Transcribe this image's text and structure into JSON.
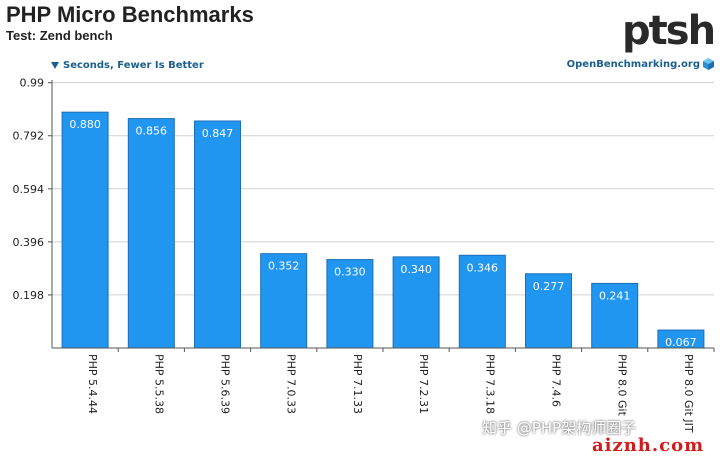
{
  "header": {
    "title": "PHP Micro Benchmarks",
    "subtitle": "Test: Zend bench",
    "y_hint": "Seconds, Fewer Is Better",
    "source": "OpenBenchmarking.org",
    "logo_text": "ptsh"
  },
  "watermark": {
    "line1": "知乎 @PHP架构师圈子",
    "line2": "aiznh.com"
  },
  "colors": {
    "bar": "#2196f0",
    "bar_border": "#1a6fb8",
    "label": "#ffffff",
    "accent": "#1b5f8f"
  },
  "chart_data": {
    "type": "bar",
    "title": "PHP Micro Benchmarks",
    "subtitle": "Test: Zend bench",
    "ylabel": "Seconds, Fewer Is Better",
    "xlabel": "",
    "ylim": [
      0,
      1.0
    ],
    "yticks": [
      "0.198",
      "0.396",
      "0.594",
      "0.792",
      "0.99"
    ],
    "ytick_values": [
      0.198,
      0.396,
      0.594,
      0.792,
      0.99
    ],
    "grid": true,
    "categories": [
      "PHP 5.4.44",
      "PHP 5.5.38",
      "PHP 5.6.39",
      "PHP 7.0.33",
      "PHP 7.1.33",
      "PHP 7.2.31",
      "PHP 7.3.18",
      "PHP 7.4.6",
      "PHP 8.0 Git",
      "PHP 8.0 Git JIT"
    ],
    "values": [
      0.88,
      0.856,
      0.847,
      0.352,
      0.33,
      0.34,
      0.346,
      0.277,
      0.241,
      0.067
    ],
    "value_labels": [
      "0.880",
      "0.856",
      "0.847",
      "0.352",
      "0.330",
      "0.340",
      "0.346",
      "0.277",
      "0.241",
      "0.067"
    ]
  }
}
